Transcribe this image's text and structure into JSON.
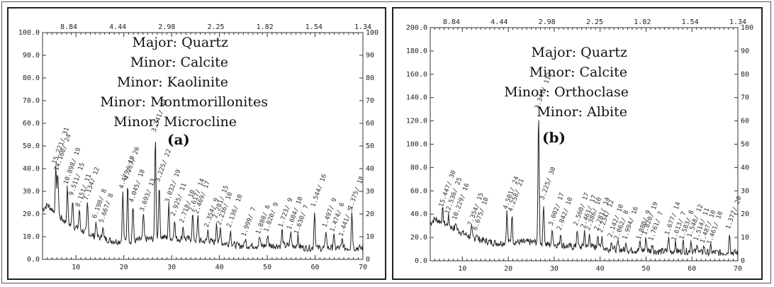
{
  "chart_data": [
    {
      "type": "line",
      "panel": "(a)",
      "minerals": [
        "Major: Quartz",
        "Minor: Calcite",
        "Minor: Kaolinite",
        "Minor: Montmorillonites",
        "Minor: Microcline"
      ],
      "left_ticks": [
        "100.0",
        "90.0",
        "80.0",
        "70.0",
        "60.0",
        "50.0",
        "40.0",
        "30.0",
        "20.0",
        "10.0",
        "0.0"
      ],
      "right_ticks": [
        "100",
        "90",
        "80",
        "70",
        "60",
        "50",
        "40",
        "30",
        "20",
        "10",
        "0"
      ],
      "x_ticks": [
        "10",
        "20",
        "30",
        "40",
        "50",
        "60",
        "70"
      ],
      "d_ticks": [
        "8.84",
        "4.44",
        "2.98",
        "2.25",
        "1.82",
        "1.54",
        "1.34"
      ],
      "xlim": [
        3,
        70
      ],
      "ylim": [
        0,
        100
      ],
      "background": [
        [
          3,
          22
        ],
        [
          4,
          24
        ],
        [
          6,
          20
        ],
        [
          8,
          16
        ],
        [
          10,
          14
        ],
        [
          12,
          12
        ],
        [
          14,
          10
        ],
        [
          16,
          9
        ],
        [
          18,
          8
        ],
        [
          20,
          8
        ],
        [
          22,
          8
        ],
        [
          24,
          9
        ],
        [
          26,
          9
        ],
        [
          28,
          10
        ],
        [
          30,
          9
        ],
        [
          32,
          9
        ],
        [
          34,
          9
        ],
        [
          36,
          8
        ],
        [
          38,
          8
        ],
        [
          40,
          7
        ],
        [
          42,
          7
        ],
        [
          44,
          6
        ],
        [
          46,
          6
        ],
        [
          48,
          6
        ],
        [
          50,
          6
        ],
        [
          52,
          6
        ],
        [
          54,
          6
        ],
        [
          56,
          6
        ],
        [
          58,
          5
        ],
        [
          60,
          5
        ],
        [
          62,
          5
        ],
        [
          64,
          5
        ],
        [
          66,
          5
        ],
        [
          68,
          5
        ],
        [
          70,
          5
        ]
      ],
      "peaks": [
        {
          "x": 5.8,
          "y": 41,
          "label": "15.221/ 31"
        },
        {
          "x": 6.2,
          "y": 38,
          "label": "14.160/ 24"
        },
        {
          "x": 8.2,
          "y": 32,
          "label": "10.898/ 19"
        },
        {
          "x": 9.3,
          "y": 27,
          "label": "9.511/ 15"
        },
        {
          "x": 10.7,
          "y": 22,
          "label": "8.151/ 11"
        },
        {
          "x": 12.4,
          "y": 25,
          "label": "7.134/ 12"
        },
        {
          "x": 14.2,
          "y": 17,
          "label": "6.190/ 8"
        },
        {
          "x": 15.6,
          "y": 15,
          "label": "5.667/ 8"
        },
        {
          "x": 19.8,
          "y": 30,
          "label": "4.479/ 19"
        },
        {
          "x": 20.8,
          "y": 34,
          "label": "4.267/ 26"
        },
        {
          "x": 21.9,
          "y": 24,
          "label": "4.045/ 18"
        },
        {
          "x": 24.1,
          "y": 20,
          "label": "3.693/ 13"
        },
        {
          "x": 26.6,
          "y": 55,
          "label": "3.341/ 44"
        },
        {
          "x": 27.4,
          "y": 33,
          "label": "3.225/ 22"
        },
        {
          "x": 29.4,
          "y": 24,
          "label": "3.032/ 19"
        },
        {
          "x": 30.6,
          "y": 18,
          "label": "2.925/ 11"
        },
        {
          "x": 32.4,
          "y": 15,
          "label": "2.718/ 10"
        },
        {
          "x": 34.4,
          "y": 20,
          "label": "2.617/ 14"
        },
        {
          "x": 35.5,
          "y": 19,
          "label": "2.469/ 17"
        },
        {
          "x": 37.6,
          "y": 13,
          "label": "2.354/ 9"
        },
        {
          "x": 39.4,
          "y": 17,
          "label": "2.281/ 15"
        },
        {
          "x": 40.2,
          "y": 14,
          "label": "2.236/ 10"
        },
        {
          "x": 42.3,
          "y": 13,
          "label": "2.136/ 10"
        },
        {
          "x": 45.4,
          "y": 9,
          "label": "1.999/ 7"
        },
        {
          "x": 48.4,
          "y": 10,
          "label": "1.880/ 6"
        },
        {
          "x": 50.1,
          "y": 11,
          "label": "1.820/ 9"
        },
        {
          "x": 53.1,
          "y": 13,
          "label": "1.723/ 9"
        },
        {
          "x": 54.9,
          "y": 12,
          "label": "1.684/ 10"
        },
        {
          "x": 56.4,
          "y": 10,
          "label": "1.630/ 7"
        },
        {
          "x": 59.9,
          "y": 22,
          "label": "1.544/ 16"
        },
        {
          "x": 62.3,
          "y": 13,
          "label": "1.497/ 9"
        },
        {
          "x": 63.9,
          "y": 11,
          "label": "1.474/ 6"
        },
        {
          "x": 65.7,
          "y": 9,
          "label": "1.441/ 5"
        },
        {
          "x": 67.7,
          "y": 21,
          "label": "1.375/ 18"
        }
      ]
    },
    {
      "type": "line",
      "panel": "(b)",
      "minerals": [
        "Major: Quartz",
        "Minor: Calcite",
        "Minor: Orthoclase",
        "Minor: Albite"
      ],
      "left_ticks": [
        "200.0",
        "180.0",
        "160.0",
        "140.0",
        "120.0",
        "100.0",
        "80.0",
        "60.0",
        "40.0",
        "20.0",
        "0.0"
      ],
      "right_ticks": [
        "100",
        "90",
        "80",
        "70",
        "60",
        "50",
        "40",
        "30",
        "20",
        "10",
        "0"
      ],
      "x_ticks": [
        "10",
        "20",
        "30",
        "40",
        "50",
        "60",
        "70"
      ],
      "d_ticks": [
        "8.84",
        "4.44",
        "2.98",
        "2.25",
        "1.82",
        "1.54",
        "1.34"
      ],
      "xlim": [
        3,
        70
      ],
      "ylim": [
        0,
        200
      ],
      "background": [
        [
          3,
          32
        ],
        [
          4,
          36
        ],
        [
          6,
          32
        ],
        [
          8,
          28
        ],
        [
          10,
          24
        ],
        [
          12,
          20
        ],
        [
          14,
          18
        ],
        [
          16,
          16
        ],
        [
          18,
          15
        ],
        [
          20,
          16
        ],
        [
          22,
          16
        ],
        [
          24,
          16
        ],
        [
          26,
          16
        ],
        [
          28,
          14
        ],
        [
          30,
          14
        ],
        [
          32,
          13
        ],
        [
          34,
          12
        ],
        [
          36,
          12
        ],
        [
          38,
          12
        ],
        [
          40,
          11
        ],
        [
          42,
          10
        ],
        [
          44,
          10
        ],
        [
          46,
          9
        ],
        [
          48,
          9
        ],
        [
          50,
          9
        ],
        [
          52,
          8
        ],
        [
          54,
          8
        ],
        [
          56,
          8
        ],
        [
          58,
          8
        ],
        [
          60,
          8
        ],
        [
          62,
          7
        ],
        [
          64,
          7
        ],
        [
          66,
          7
        ],
        [
          68,
          7
        ],
        [
          70,
          7
        ]
      ],
      "peaks": [
        {
          "x": 5.7,
          "y": 44,
          "label": "15.447/ 30"
        },
        {
          "x": 7.0,
          "y": 38,
          "label": "12.536/ 25"
        },
        {
          "x": 8.6,
          "y": 33,
          "label": "10.229/ 16"
        },
        {
          "x": 12.0,
          "y": 28,
          "label": "7.354/ 15"
        },
        {
          "x": 13.1,
          "y": 24,
          "label": "6.675/ 10"
        },
        {
          "x": 19.7,
          "y": 42,
          "label": "4.501/ 24"
        },
        {
          "x": 20.8,
          "y": 40,
          "label": "4.258/ 21"
        },
        {
          "x": 26.6,
          "y": 128,
          "label": "3.341/ 112"
        },
        {
          "x": 27.7,
          "y": 50,
          "label": "3.225/ 30"
        },
        {
          "x": 29.6,
          "y": 28,
          "label": "3.002/ 17"
        },
        {
          "x": 31.4,
          "y": 24,
          "label": "2.842/ 10"
        },
        {
          "x": 35.0,
          "y": 28,
          "label": "2.560/ 17"
        },
        {
          "x": 36.6,
          "y": 26,
          "label": "2.461/ 17"
        },
        {
          "x": 37.7,
          "y": 24,
          "label": "2.386/ 10"
        },
        {
          "x": 39.5,
          "y": 24,
          "label": "2.281/ 14"
        },
        {
          "x": 40.4,
          "y": 22,
          "label": "2.234/ 12"
        },
        {
          "x": 42.5,
          "y": 18,
          "label": "2.142/ 10"
        },
        {
          "x": 43.9,
          "y": 16,
          "label": "2.062/ 8"
        },
        {
          "x": 45.7,
          "y": 16,
          "label": "1.994/ 16"
        },
        {
          "x": 48.7,
          "y": 16,
          "label": "1.880/ 9"
        },
        {
          "x": 50.0,
          "y": 20,
          "label": "1.820/ 19"
        },
        {
          "x": 51.4,
          "y": 15,
          "label": "1.761/ 7"
        },
        {
          "x": 54.9,
          "y": 20,
          "label": "1.677/ 14"
        },
        {
          "x": 56.4,
          "y": 15,
          "label": "1.613/ 7"
        },
        {
          "x": 58.1,
          "y": 16,
          "label": "1.583/ 8"
        },
        {
          "x": 59.8,
          "y": 18,
          "label": "1.548/ 12"
        },
        {
          "x": 61.2,
          "y": 15,
          "label": "1.514/ 11"
        },
        {
          "x": 62.6,
          "y": 13,
          "label": "1.487/ 10"
        },
        {
          "x": 64.1,
          "y": 12,
          "label": "1.461/ 10"
        },
        {
          "x": 68.2,
          "y": 25,
          "label": "1.377/ 20"
        }
      ]
    }
  ]
}
